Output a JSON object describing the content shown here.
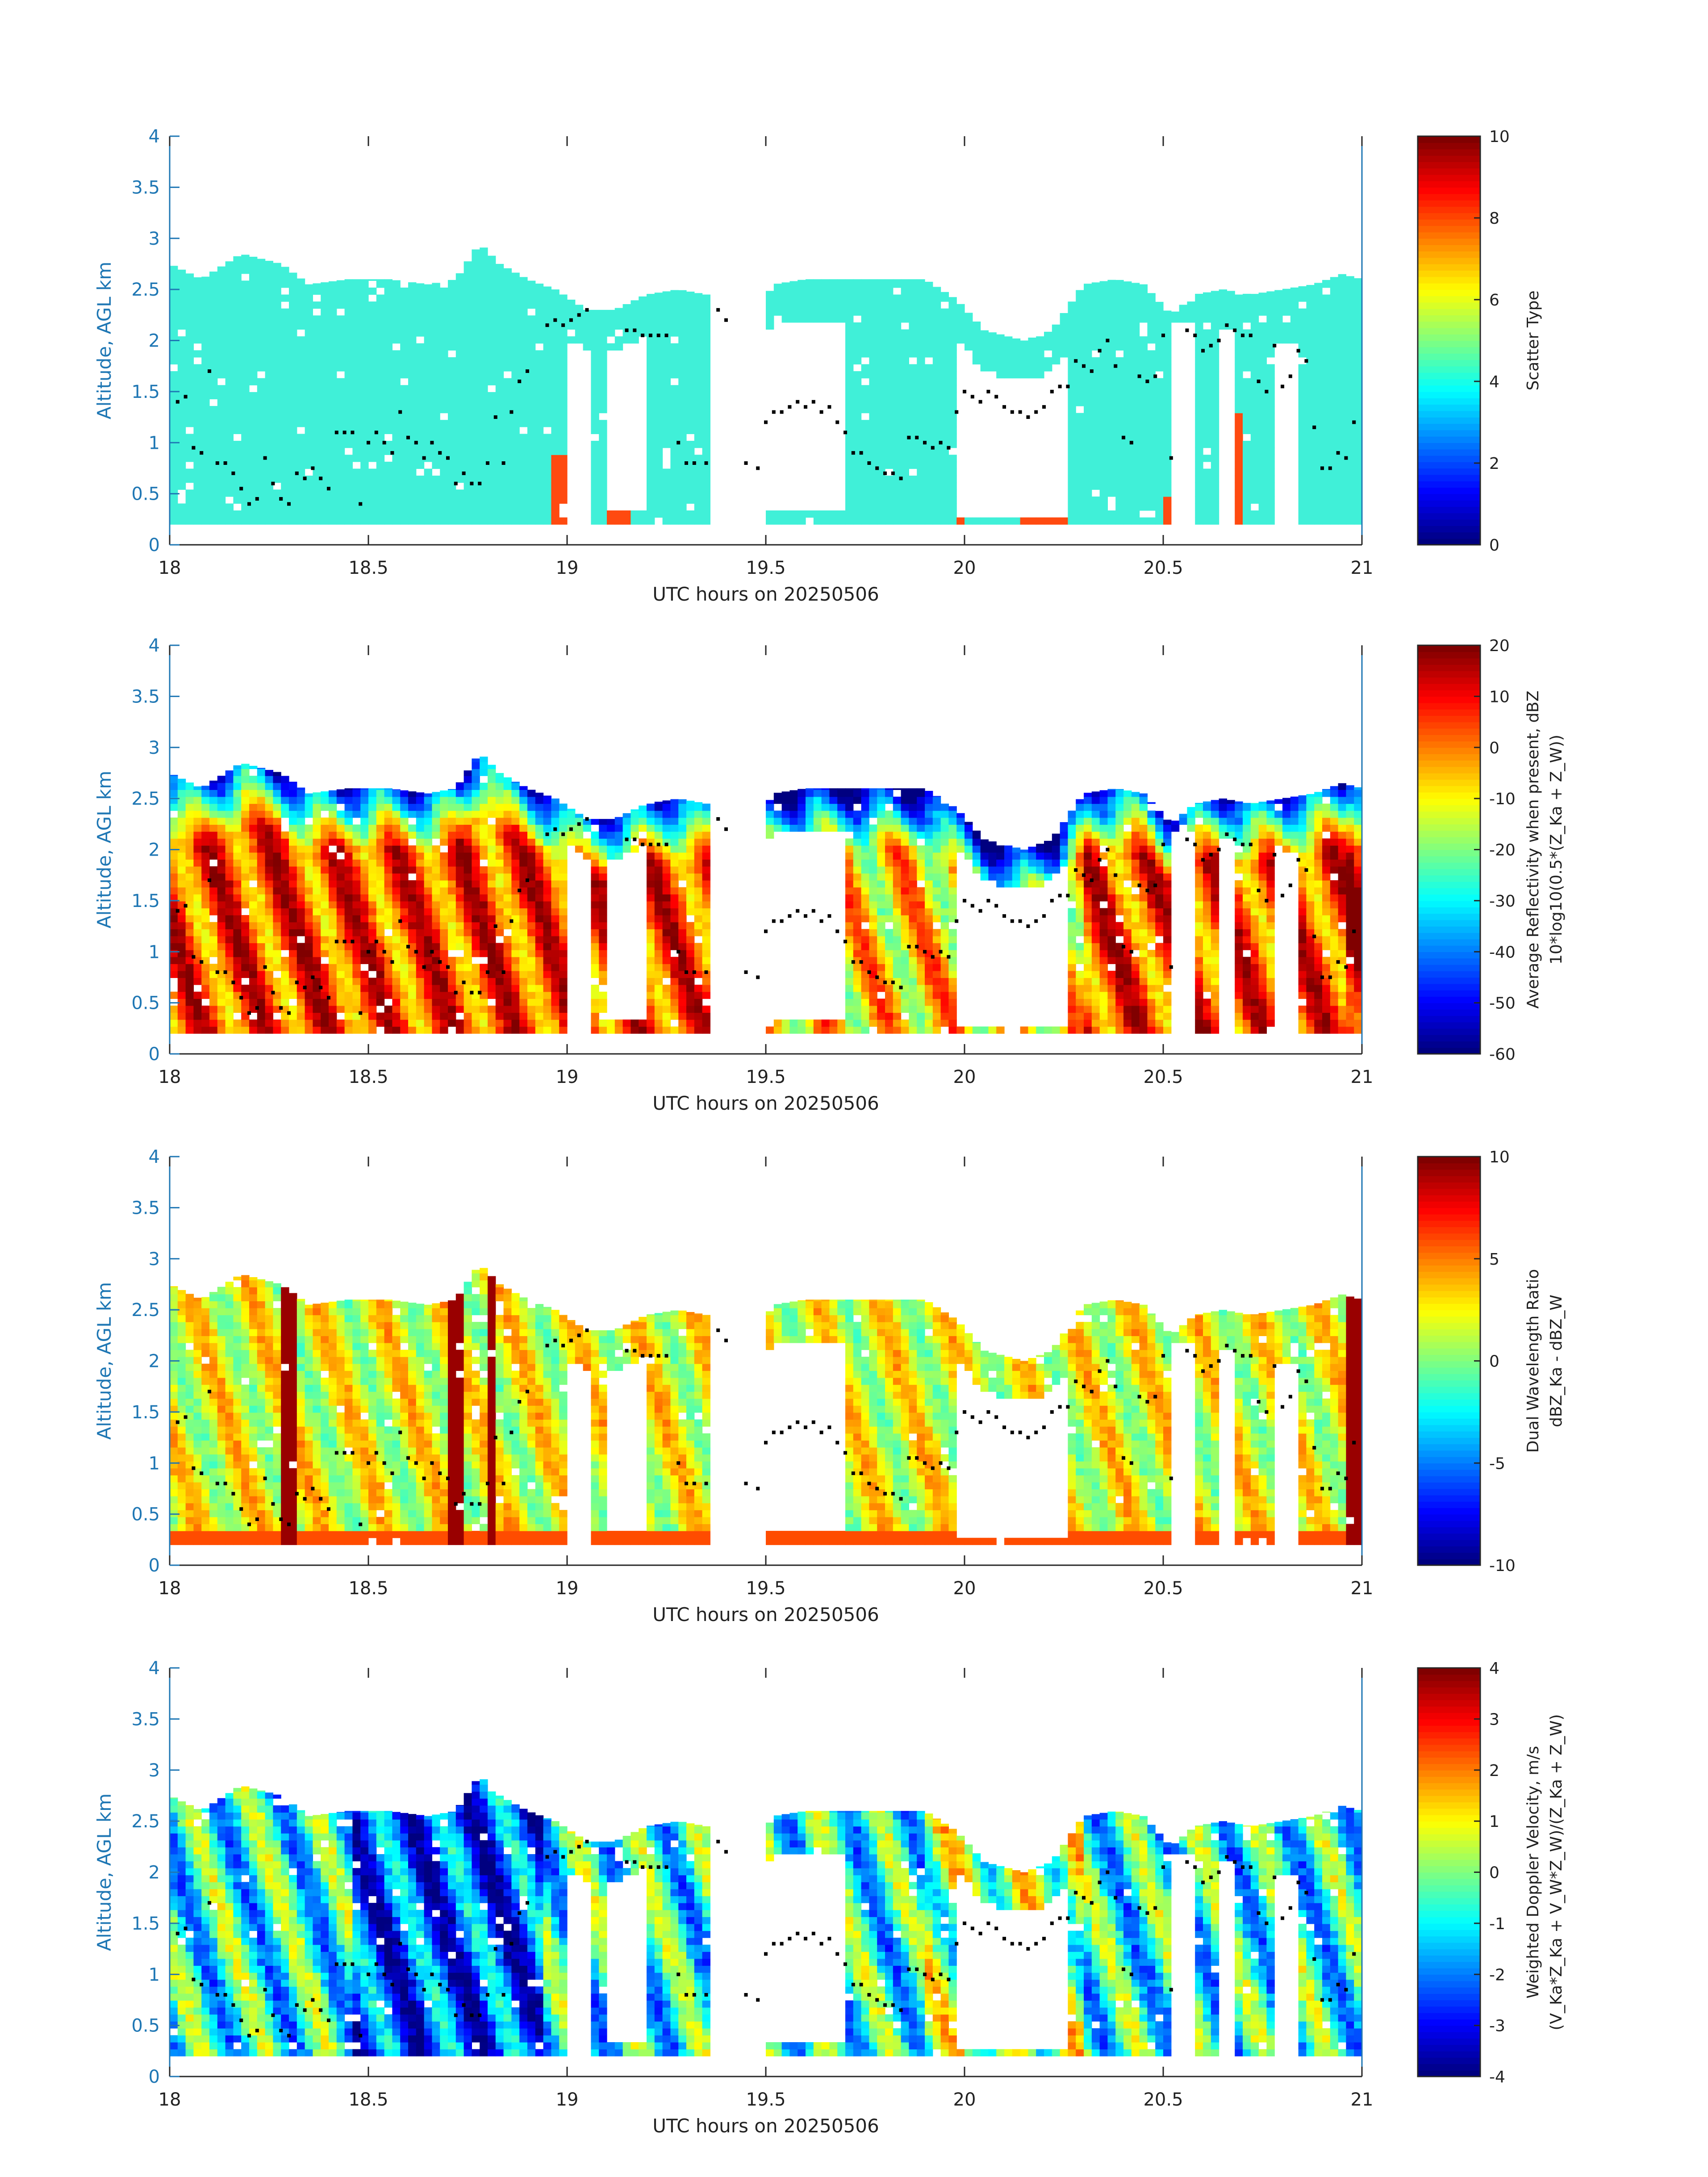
{
  "figure": {
    "x_axis_label": "UTC hours on 20250506",
    "y_axis_label": "Altitude, AGL km"
  },
  "colors": {
    "axis_blue": "#1f77b4",
    "scatter_cyan": "#40f0d8",
    "scatter_red": "#ff4a10",
    "cloud_dots": "#000000"
  },
  "chart_data": [
    {
      "type": "heatmap",
      "title": "",
      "xlabel": "UTC hours on 20250506",
      "ylabel": "Altitude, AGL km",
      "xlim": [
        18,
        21
      ],
      "ylim": [
        0,
        4
      ],
      "x_ticks": [
        "18",
        "18.5",
        "19",
        "19.5",
        "20",
        "20.5",
        "21"
      ],
      "y_ticks": [
        "0",
        "0.5",
        "1",
        "1.5",
        "2",
        "2.5",
        "3",
        "3.5",
        "4"
      ],
      "colorbar": {
        "label_lines": [
          "Scatter Type"
        ],
        "range": [
          0,
          10
        ],
        "ticks": [
          "0",
          "2",
          "4",
          "6",
          "8",
          "10"
        ]
      },
      "field": "scatter",
      "description_value": "scatter type"
    },
    {
      "type": "heatmap",
      "title": "",
      "xlabel": "UTC hours on 20250506",
      "ylabel": "Altitude, AGL km",
      "xlim": [
        18,
        21
      ],
      "ylim": [
        0,
        4
      ],
      "x_ticks": [
        "18",
        "18.5",
        "19",
        "19.5",
        "20",
        "20.5",
        "21"
      ],
      "y_ticks": [
        "0",
        "0.5",
        "1",
        "1.5",
        "2",
        "2.5",
        "3",
        "3.5",
        "4"
      ],
      "colorbar": {
        "label_lines": [
          "Average Reflectivity when present, dBZ",
          "10*log10(0.5*(Z_Ka + Z_W))"
        ],
        "range": [
          -60,
          20
        ],
        "ticks": [
          "-60",
          "-50",
          "-40",
          "-30",
          "-20",
          "-10",
          "0",
          "10",
          "20"
        ]
      },
      "field": "reflectivity"
    },
    {
      "type": "heatmap",
      "title": "",
      "xlabel": "UTC hours on 20250506",
      "ylabel": "Altitude, AGL km",
      "xlim": [
        18,
        21
      ],
      "ylim": [
        0,
        4
      ],
      "x_ticks": [
        "18",
        "18.5",
        "19",
        "19.5",
        "20",
        "20.5",
        "21"
      ],
      "y_ticks": [
        "0",
        "0.5",
        "1",
        "1.5",
        "2",
        "2.5",
        "3",
        "3.5",
        "4"
      ],
      "colorbar": {
        "label_lines": [
          "Dual Wavelength Ratio",
          "dBZ_Ka - dBZ_W"
        ],
        "range": [
          -10,
          10
        ],
        "ticks": [
          "-10",
          "-5",
          "0",
          "5",
          "10"
        ]
      },
      "field": "dwr"
    },
    {
      "type": "heatmap",
      "title": "",
      "xlabel": "UTC hours on 20250506",
      "ylabel": "Altitude, AGL km",
      "xlim": [
        18,
        21
      ],
      "ylim": [
        0,
        4
      ],
      "x_ticks": [
        "18",
        "18.5",
        "19",
        "19.5",
        "20",
        "20.5",
        "21"
      ],
      "y_ticks": [
        "0",
        "0.5",
        "1",
        "1.5",
        "2",
        "2.5",
        "3",
        "3.5",
        "4"
      ],
      "colorbar": {
        "label_lines": [
          "Weighted Doppler Velocity, m/s",
          "(V_Ka*Z_Ka + V_W*Z_W)/(Z_Ka + Z_W)"
        ],
        "range": [
          -4,
          4
        ],
        "ticks": [
          "-4",
          "-3",
          "-2",
          "-1",
          "0",
          "1",
          "2",
          "3",
          "4"
        ]
      },
      "field": "velocity"
    }
  ],
  "shared_series": {
    "cloud_top_km": [
      [
        18.0,
        2.75
      ],
      [
        18.08,
        2.6
      ],
      [
        18.18,
        2.85
      ],
      [
        18.28,
        2.75
      ],
      [
        18.35,
        2.55
      ],
      [
        18.45,
        2.6
      ],
      [
        18.55,
        2.6
      ],
      [
        18.65,
        2.55
      ],
      [
        18.72,
        2.6
      ],
      [
        18.78,
        2.95
      ],
      [
        18.83,
        2.75
      ],
      [
        18.9,
        2.6
      ],
      [
        18.97,
        2.5
      ],
      [
        19.05,
        2.3
      ],
      [
        19.12,
        2.3
      ],
      [
        19.2,
        2.45
      ],
      [
        19.28,
        2.5
      ],
      [
        19.35,
        2.45
      ],
      [
        19.4,
        2.3
      ],
      [
        19.45,
        2.1
      ],
      [
        19.52,
        2.55
      ],
      [
        19.6,
        2.6
      ],
      [
        19.7,
        2.6
      ],
      [
        19.8,
        2.6
      ],
      [
        19.9,
        2.6
      ],
      [
        19.98,
        2.4
      ],
      [
        20.05,
        2.1
      ],
      [
        20.15,
        2.0
      ],
      [
        20.22,
        2.1
      ],
      [
        20.3,
        2.55
      ],
      [
        20.38,
        2.6
      ],
      [
        20.45,
        2.55
      ],
      [
        20.52,
        2.25
      ],
      [
        20.58,
        2.45
      ],
      [
        20.65,
        2.5
      ],
      [
        20.72,
        2.45
      ],
      [
        20.8,
        2.5
      ],
      [
        20.88,
        2.55
      ],
      [
        20.95,
        2.65
      ],
      [
        21.0,
        2.6
      ]
    ],
    "cloud_base_km": 0.2,
    "gaps_hours": [
      [
        19.0,
        19.07,
        0.9
      ],
      [
        19.1,
        19.2,
        1.3
      ],
      [
        19.37,
        19.5,
        0.25
      ],
      [
        19.5,
        19.7,
        1.35
      ],
      [
        19.98,
        20.27,
        0.95
      ],
      [
        20.52,
        20.58,
        2.2
      ],
      [
        20.64,
        20.68,
        2.1
      ],
      [
        20.78,
        20.85,
        2.0
      ]
    ],
    "melting_layer_dots": [
      [
        18.02,
        1.4
      ],
      [
        18.04,
        1.45
      ],
      [
        18.06,
        0.95
      ],
      [
        18.08,
        0.9
      ],
      [
        18.1,
        1.7
      ],
      [
        18.12,
        0.8
      ],
      [
        18.14,
        0.8
      ],
      [
        18.16,
        0.7
      ],
      [
        18.18,
        0.55
      ],
      [
        18.2,
        0.4
      ],
      [
        18.22,
        0.45
      ],
      [
        18.24,
        0.85
      ],
      [
        18.26,
        0.6
      ],
      [
        18.28,
        0.45
      ],
      [
        18.3,
        0.4
      ],
      [
        18.32,
        0.7
      ],
      [
        18.34,
        0.65
      ],
      [
        18.36,
        0.75
      ],
      [
        18.38,
        0.65
      ],
      [
        18.4,
        0.55
      ],
      [
        18.42,
        1.1
      ],
      [
        18.44,
        1.1
      ],
      [
        18.46,
        1.1
      ],
      [
        18.48,
        0.4
      ],
      [
        18.5,
        1.0
      ],
      [
        18.52,
        1.1
      ],
      [
        18.54,
        1.0
      ],
      [
        18.56,
        0.9
      ],
      [
        18.58,
        1.3
      ],
      [
        18.6,
        1.05
      ],
      [
        18.62,
        1.0
      ],
      [
        18.64,
        0.85
      ],
      [
        18.66,
        1.0
      ],
      [
        18.68,
        0.9
      ],
      [
        18.7,
        0.85
      ],
      [
        18.72,
        0.6
      ],
      [
        18.74,
        0.7
      ],
      [
        18.76,
        0.6
      ],
      [
        18.78,
        0.6
      ],
      [
        18.8,
        0.8
      ],
      [
        18.82,
        1.25
      ],
      [
        18.84,
        0.8
      ],
      [
        18.86,
        1.3
      ],
      [
        18.88,
        1.6
      ],
      [
        18.9,
        1.7
      ],
      [
        18.95,
        2.15
      ],
      [
        18.97,
        2.2
      ],
      [
        18.99,
        2.15
      ],
      [
        19.01,
        2.2
      ],
      [
        19.03,
        2.25
      ],
      [
        19.05,
        2.3
      ],
      [
        19.15,
        2.1
      ],
      [
        19.17,
        2.1
      ],
      [
        19.19,
        2.05
      ],
      [
        19.21,
        2.05
      ],
      [
        19.23,
        2.05
      ],
      [
        19.25,
        2.05
      ],
      [
        19.28,
        1.0
      ],
      [
        19.3,
        0.8
      ],
      [
        19.32,
        0.8
      ],
      [
        19.35,
        0.8
      ],
      [
        19.38,
        2.3
      ],
      [
        19.4,
        2.2
      ],
      [
        19.45,
        0.8
      ],
      [
        19.48,
        0.75
      ],
      [
        19.5,
        1.2
      ],
      [
        19.52,
        1.3
      ],
      [
        19.54,
        1.3
      ],
      [
        19.56,
        1.35
      ],
      [
        19.58,
        1.4
      ],
      [
        19.6,
        1.35
      ],
      [
        19.62,
        1.4
      ],
      [
        19.64,
        1.3
      ],
      [
        19.66,
        1.35
      ],
      [
        19.68,
        1.2
      ],
      [
        19.7,
        1.1
      ],
      [
        19.72,
        0.9
      ],
      [
        19.74,
        0.9
      ],
      [
        19.76,
        0.8
      ],
      [
        19.78,
        0.75
      ],
      [
        19.8,
        0.7
      ],
      [
        19.82,
        0.7
      ],
      [
        19.84,
        0.65
      ],
      [
        19.86,
        1.05
      ],
      [
        19.88,
        1.05
      ],
      [
        19.9,
        1.0
      ],
      [
        19.92,
        0.95
      ],
      [
        19.94,
        1.0
      ],
      [
        19.96,
        0.95
      ],
      [
        19.98,
        1.3
      ],
      [
        20.0,
        1.5
      ],
      [
        20.02,
        1.45
      ],
      [
        20.04,
        1.4
      ],
      [
        20.06,
        1.5
      ],
      [
        20.08,
        1.45
      ],
      [
        20.1,
        1.35
      ],
      [
        20.12,
        1.3
      ],
      [
        20.14,
        1.3
      ],
      [
        20.16,
        1.25
      ],
      [
        20.18,
        1.3
      ],
      [
        20.2,
        1.35
      ],
      [
        20.22,
        1.5
      ],
      [
        20.24,
        1.55
      ],
      [
        20.26,
        1.55
      ],
      [
        20.28,
        1.8
      ],
      [
        20.3,
        1.75
      ],
      [
        20.32,
        1.7
      ],
      [
        20.34,
        1.9
      ],
      [
        20.36,
        2.0
      ],
      [
        20.38,
        1.75
      ],
      [
        20.4,
        1.05
      ],
      [
        20.42,
        1.0
      ],
      [
        20.44,
        1.65
      ],
      [
        20.46,
        1.6
      ],
      [
        20.48,
        1.65
      ],
      [
        20.5,
        2.05
      ],
      [
        20.52,
        0.85
      ],
      [
        20.56,
        2.1
      ],
      [
        20.58,
        2.05
      ],
      [
        20.6,
        1.9
      ],
      [
        20.62,
        1.95
      ],
      [
        20.64,
        2.0
      ],
      [
        20.66,
        2.15
      ],
      [
        20.68,
        2.1
      ],
      [
        20.7,
        2.05
      ],
      [
        20.72,
        2.05
      ],
      [
        20.74,
        1.6
      ],
      [
        20.76,
        1.5
      ],
      [
        20.78,
        1.95
      ],
      [
        20.8,
        1.55
      ],
      [
        20.82,
        1.65
      ],
      [
        20.84,
        1.9
      ],
      [
        20.86,
        1.8
      ],
      [
        20.88,
        1.15
      ],
      [
        20.9,
        0.75
      ],
      [
        20.92,
        0.75
      ],
      [
        20.94,
        0.9
      ],
      [
        20.96,
        0.85
      ],
      [
        20.98,
        1.2
      ]
    ]
  }
}
